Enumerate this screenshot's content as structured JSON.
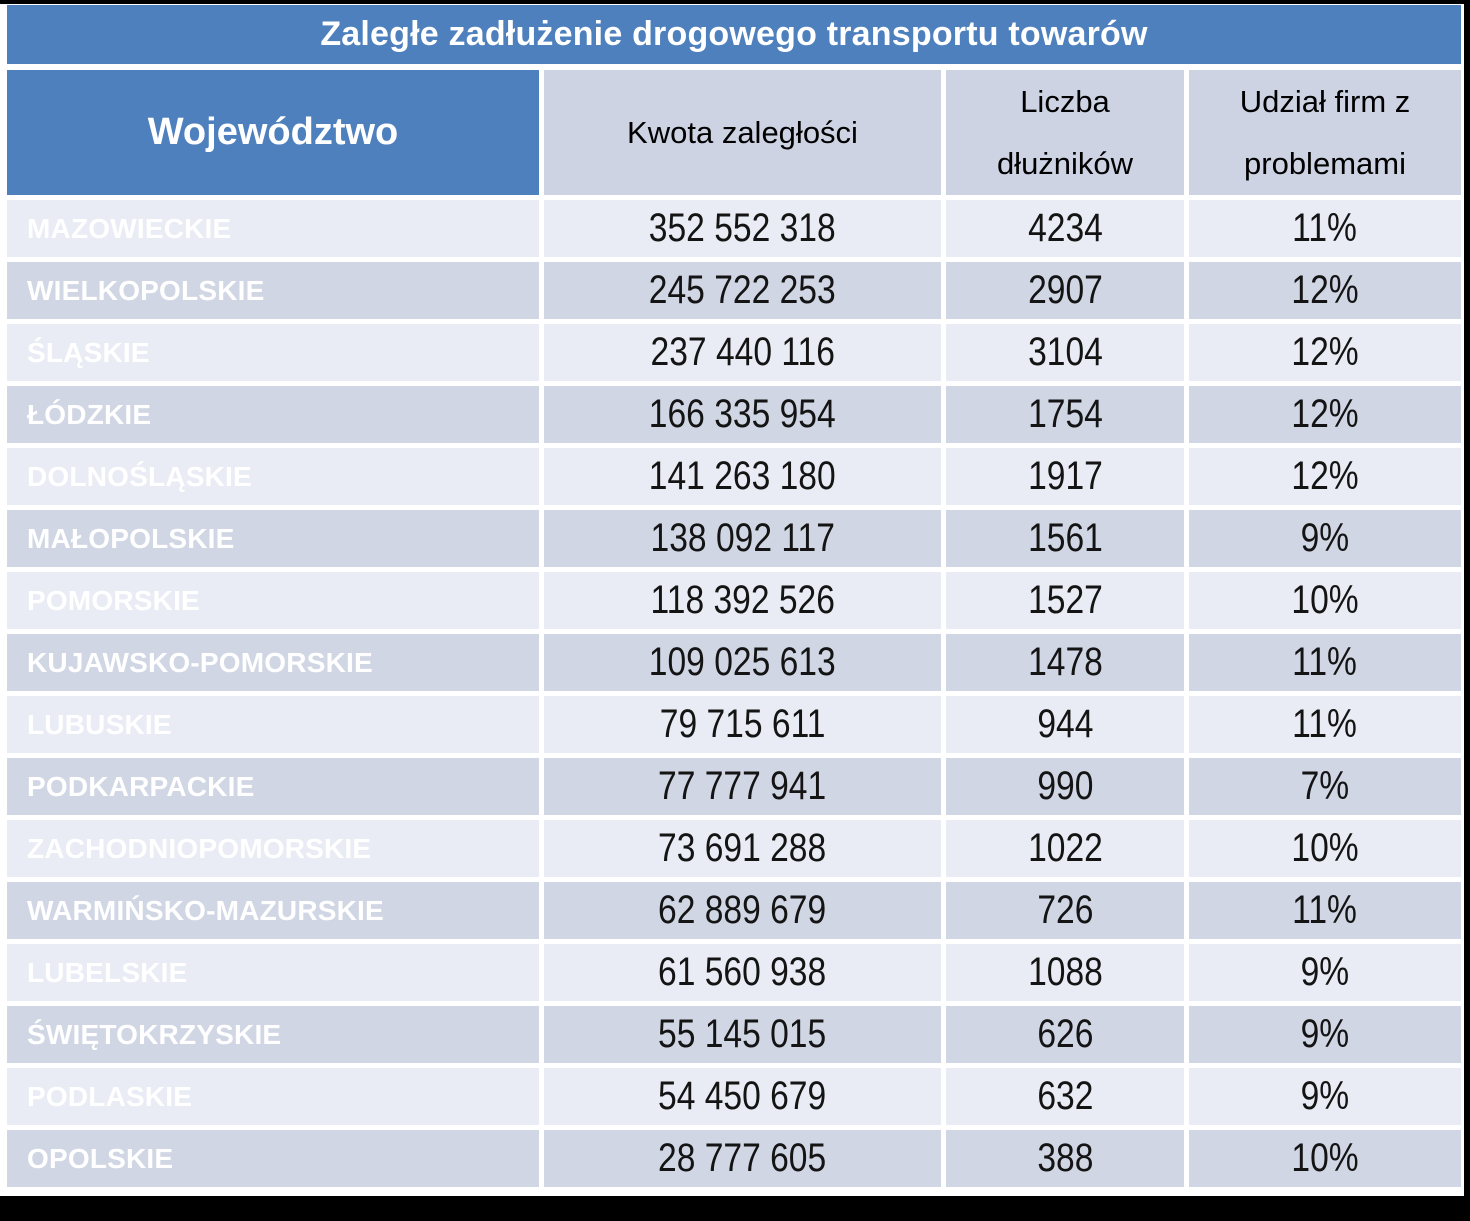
{
  "title": "Zaległe zadłużenie drogowego transportu towarów",
  "columns": {
    "region": "Województwo",
    "amount": "Kwota zaległości",
    "debtors": "Liczba dłużników",
    "share": "Udział firm z problemami"
  },
  "rows": [
    {
      "region": "MAZOWIECKIE",
      "amount": "352 552 318",
      "debtors": "4234",
      "share": "11%"
    },
    {
      "region": "WIELKOPOLSKIE",
      "amount": "245 722 253",
      "debtors": "2907",
      "share": "12%"
    },
    {
      "region": "ŚLĄSKIE",
      "amount": "237 440 116",
      "debtors": "3104",
      "share": "12%"
    },
    {
      "region": "ŁÓDZKIE",
      "amount": "166 335 954",
      "debtors": "1754",
      "share": "12%"
    },
    {
      "region": "DOLNOŚLĄSKIE",
      "amount": "141 263 180",
      "debtors": "1917",
      "share": "12%"
    },
    {
      "region": "MAŁOPOLSKIE",
      "amount": "138 092 117",
      "debtors": "1561",
      "share": "9%"
    },
    {
      "region": "POMORSKIE",
      "amount": "118 392 526",
      "debtors": "1527",
      "share": "10%"
    },
    {
      "region": "KUJAWSKO-POMORSKIE",
      "amount": "109 025 613",
      "debtors": "1478",
      "share": "11%"
    },
    {
      "region": "LUBUSKIE",
      "amount": "79 715 611",
      "debtors": "944",
      "share": "11%"
    },
    {
      "region": "PODKARPACKIE",
      "amount": "77 777 941",
      "debtors": "990",
      "share": "7%"
    },
    {
      "region": "ZACHODNIOPOMORSKIE",
      "amount": "73 691 288",
      "debtors": "1022",
      "share": "10%"
    },
    {
      "region": "WARMIŃSKO-MAZURSKIE",
      "amount": "62 889 679",
      "debtors": "726",
      "share": "11%"
    },
    {
      "region": "LUBELSKIE",
      "amount": "61 560 938",
      "debtors": "1088",
      "share": "9%"
    },
    {
      "region": "ŚWIĘTOKRZYSKIE",
      "amount": "55 145 015",
      "debtors": "626",
      "share": "9%"
    },
    {
      "region": "PODLASKIE",
      "amount": "54 450 679",
      "debtors": "632",
      "share": "9%"
    },
    {
      "region": "OPOLSKIE",
      "amount": "28 777 605",
      "debtors": "388",
      "share": "10%"
    }
  ],
  "theme": {
    "header_blue": "#4e80be",
    "header_lavender": "#cdd3e3",
    "band_light": "#e9ecf4",
    "band_dark": "#d0d6e4",
    "text_on_blue": "#ffffff",
    "text_value": "#141414",
    "screen_edge": "#000000"
  }
}
